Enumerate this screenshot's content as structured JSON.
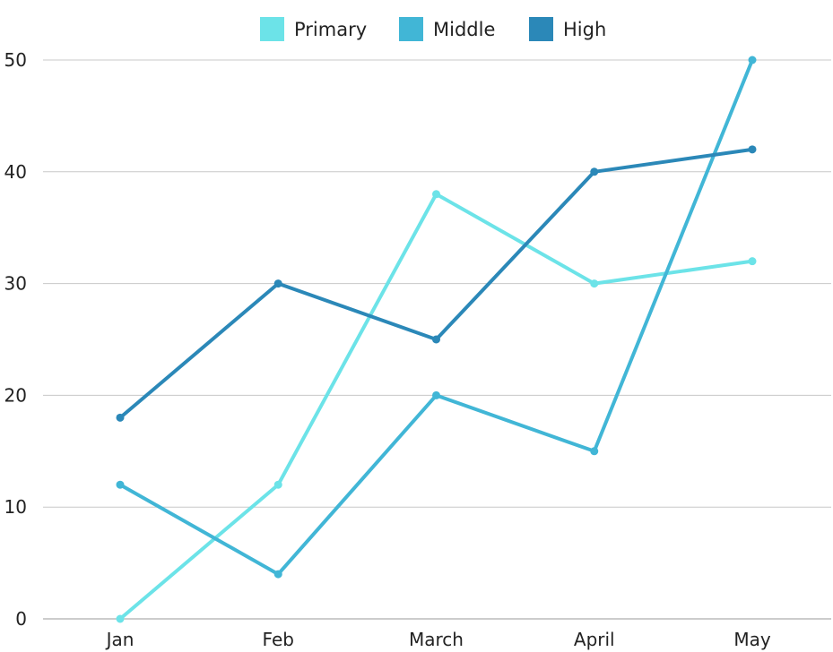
{
  "chart_data": {
    "type": "line",
    "categories": [
      "Jan",
      "Feb",
      "March",
      "April",
      "May"
    ],
    "series": [
      {
        "name": "Primary",
        "color": "#6ce3e8",
        "values": [
          0,
          12,
          38,
          30,
          32
        ]
      },
      {
        "name": "Middle",
        "color": "#41b6d6",
        "values": [
          12,
          4,
          20,
          15,
          50
        ]
      },
      {
        "name": "High",
        "color": "#2b88b8",
        "values": [
          18,
          30,
          25,
          40,
          42
        ]
      }
    ],
    "ylim": [
      0,
      50
    ],
    "yticks": [
      0,
      10,
      20,
      30,
      40,
      50
    ],
    "grid": true,
    "legend_position": "top-center"
  }
}
